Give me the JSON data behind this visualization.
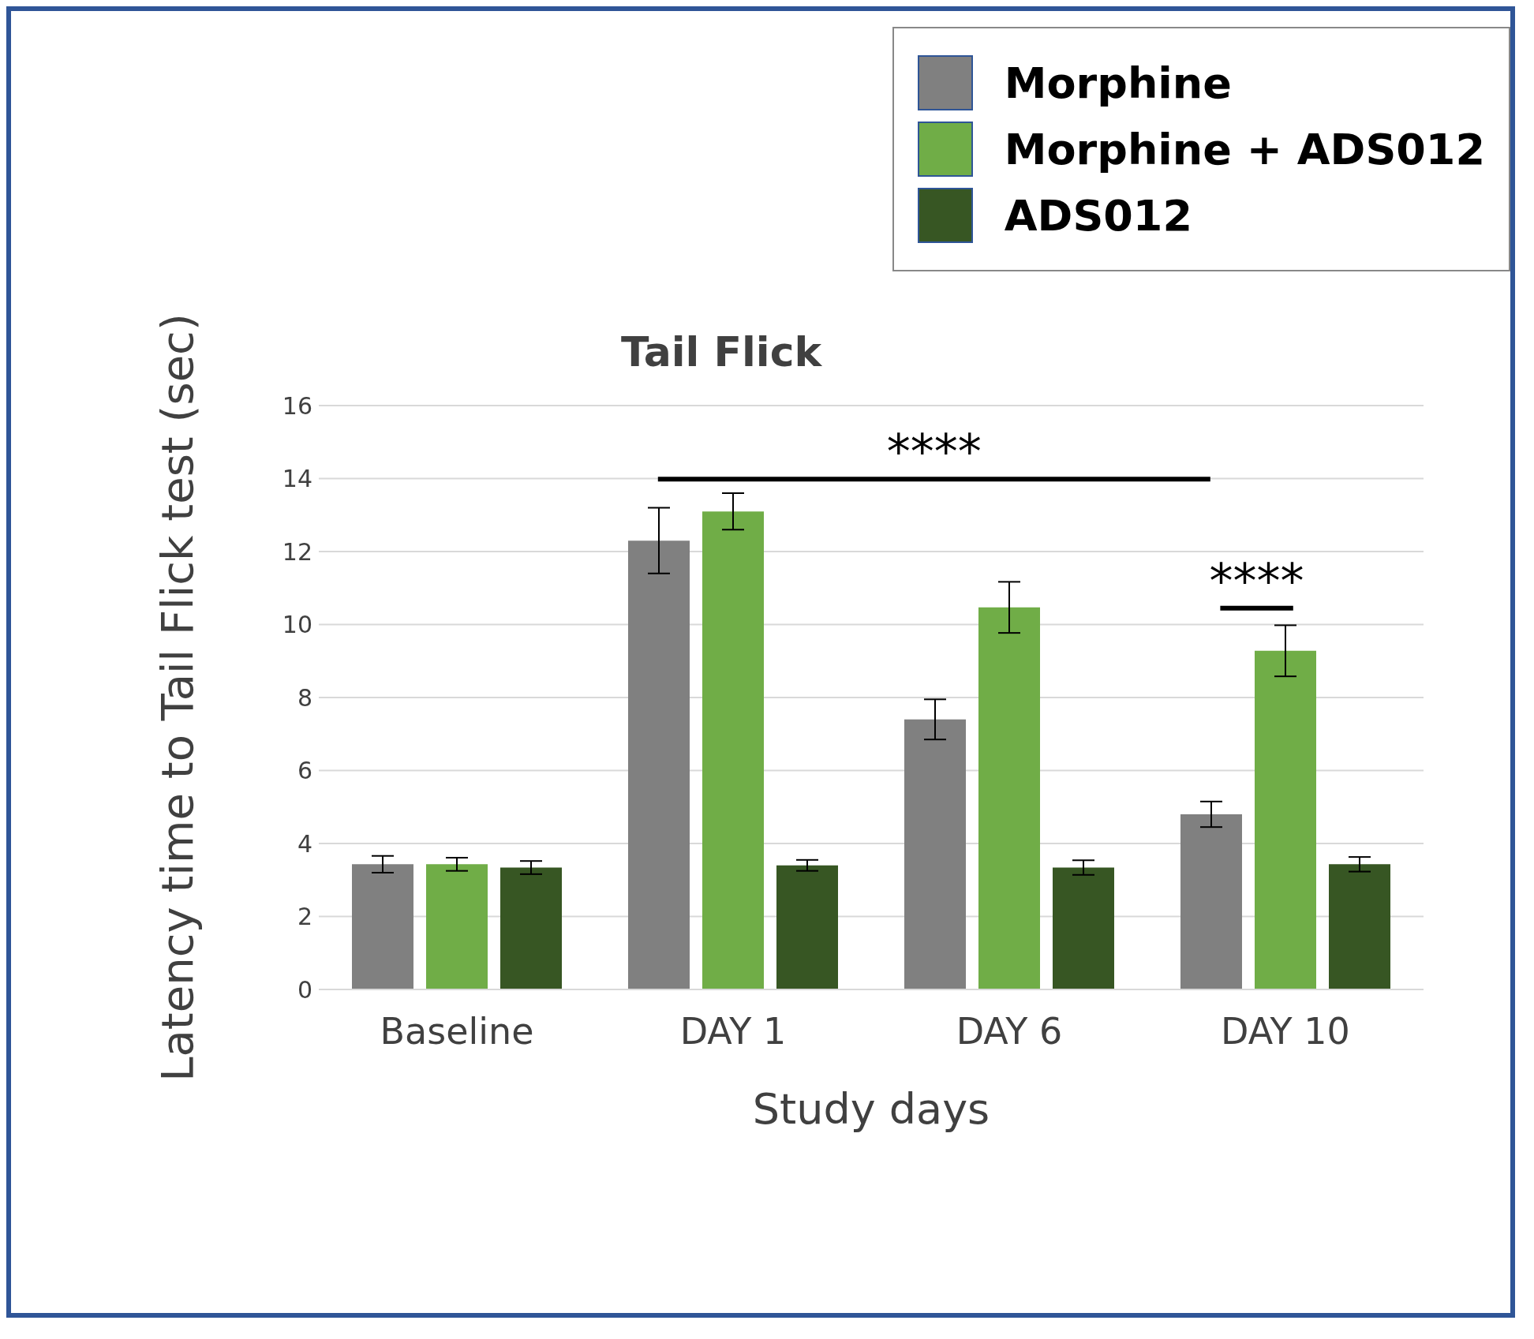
{
  "chart_data": {
    "type": "bar",
    "title": "Tail Flick",
    "xlabel": "Study days",
    "ylabel": "Latency time to Tail Flick test (sec)",
    "categories": [
      "Baseline",
      "DAY 1",
      "DAY 6",
      "DAY 10"
    ],
    "series": [
      {
        "name": "Morphine",
        "color": "#808080",
        "values": [
          3.43,
          12.3,
          7.4,
          4.8
        ],
        "errors": [
          0.23,
          0.9,
          0.55,
          0.35
        ]
      },
      {
        "name": "Morphine + ADS012",
        "color": "#70ad47",
        "values": [
          3.43,
          13.1,
          10.47,
          9.28
        ],
        "errors": [
          0.18,
          0.5,
          0.7,
          0.7
        ]
      },
      {
        "name": "ADS012",
        "color": "#375623",
        "values": [
          3.34,
          3.4,
          3.34,
          3.43
        ],
        "errors": [
          0.18,
          0.15,
          0.2,
          0.2
        ]
      }
    ],
    "ylim": [
      0,
      16
    ],
    "yticks": [
      0,
      2,
      4,
      6,
      8,
      10,
      12,
      14,
      16
    ],
    "grid": "y",
    "legend": "top right",
    "annotations": [
      "****",
      "****"
    ]
  }
}
